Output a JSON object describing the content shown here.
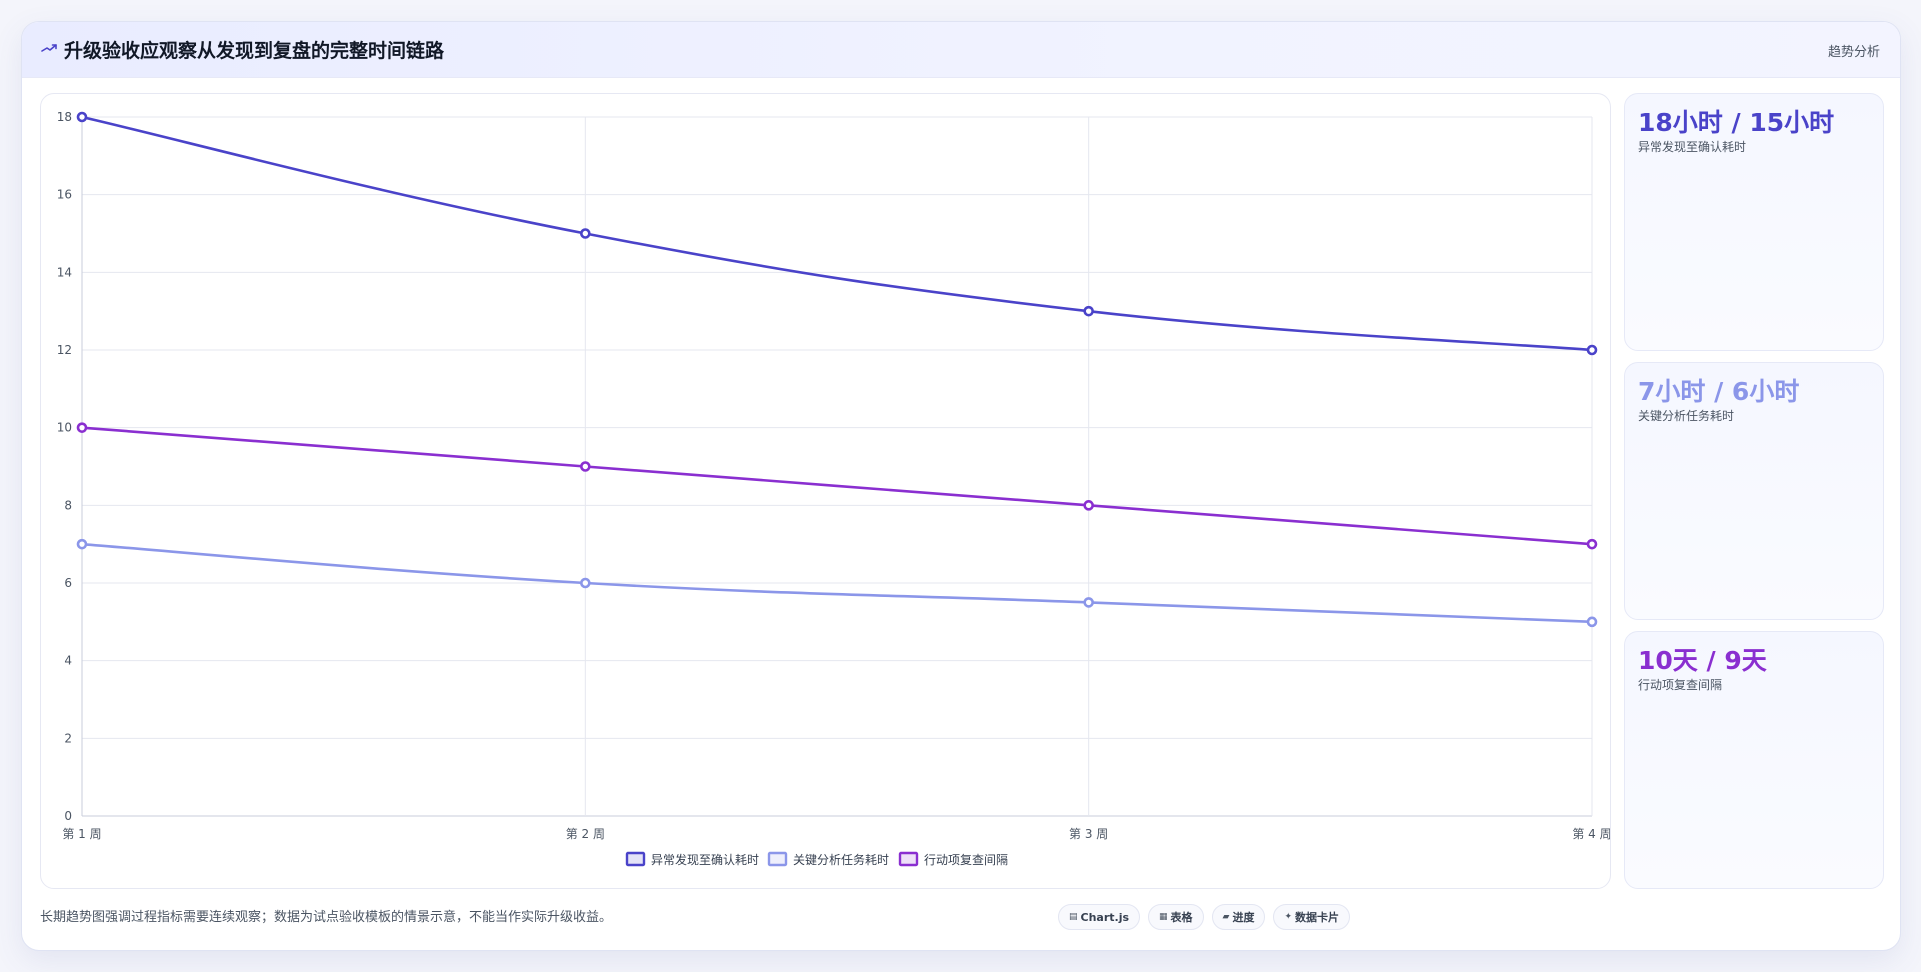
{
  "header": {
    "title": "升级验收应观察从发现到复盘的完整时间链路",
    "tag": "趋势分析",
    "icon": "trend-line-icon"
  },
  "chart_data": {
    "type": "line",
    "categories": [
      "第 1 周",
      "第 2 周",
      "第 3 周",
      "第 4 周"
    ],
    "ylim": [
      0,
      18
    ],
    "yticks": [
      0,
      2,
      4,
      6,
      8,
      10,
      12,
      14,
      16,
      18
    ],
    "grid": true,
    "legend": "bottom",
    "series": [
      {
        "name": "异常发现至确认耗时",
        "values": [
          18,
          15,
          13,
          12
        ],
        "color": "#4a43c9"
      },
      {
        "name": "关键分析任务耗时",
        "values": [
          7,
          6,
          5.5,
          5
        ],
        "color": "#8b96e9"
      },
      {
        "name": "行动项复查间隔",
        "values": [
          10,
          9,
          8,
          7
        ],
        "color": "#8a2fd0"
      }
    ]
  },
  "cards": [
    {
      "value": "18小时 / 15小时",
      "label": "异常发现至确认耗时",
      "color": "#4a43c9"
    },
    {
      "value": "7小时 / 6小时",
      "label": "关键分析任务耗时",
      "color": "#8b96e9"
    },
    {
      "value": "10天 / 9天",
      "label": "行动项复查间隔",
      "color": "#8a2fd0"
    }
  ],
  "footnote": "长期趋势图强调过程指标需要连续观察；数据为试点验收模板的情景示意，不能当作实际升级收益。",
  "chips": [
    {
      "icon": "chart-icon",
      "label": "Chart.js"
    },
    {
      "icon": "table-icon",
      "label": "表格"
    },
    {
      "icon": "progress-icon",
      "label": "进度"
    },
    {
      "icon": "card-icon",
      "label": "数据卡片"
    }
  ]
}
